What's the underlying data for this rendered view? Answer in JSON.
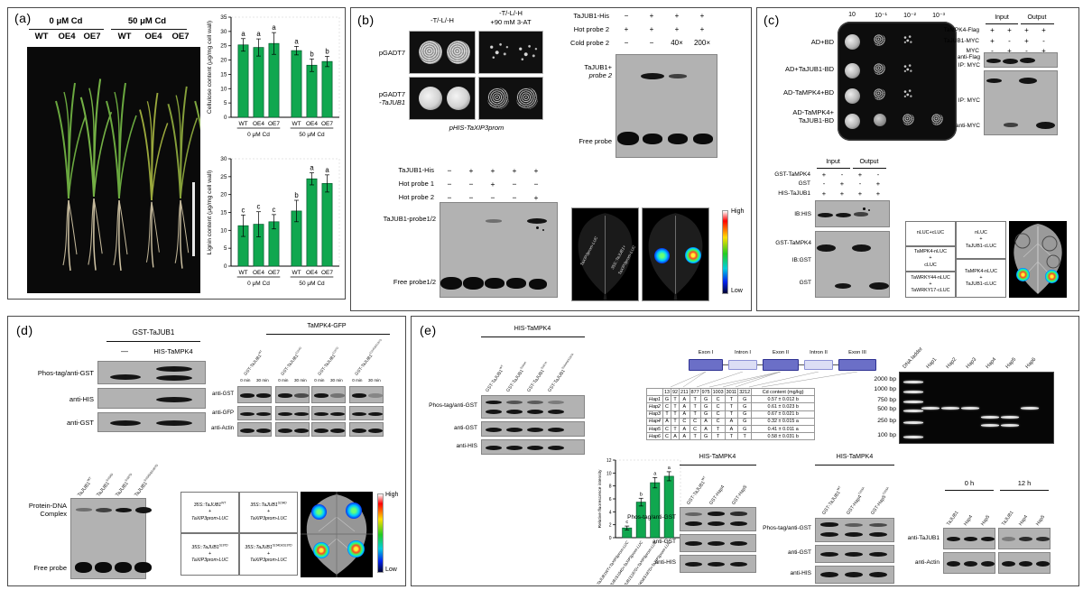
{
  "panel_a": {
    "label": "(a)",
    "treatments": [
      "0 μM Cd",
      "50 μM Cd"
    ],
    "genotypes": [
      "WT",
      "OE4",
      "OE7",
      "WT",
      "OE4",
      "OE7"
    ]
  },
  "panel_b": {
    "label": "(b)",
    "y1h": {
      "col1": "-T/-L/-H",
      "col2a": "-T/-L/-H",
      "col2b": "+90 mM 3-AT",
      "row1": "pGADT7",
      "row2a": "pGADT7",
      "row2b": "-TaJUB1",
      "bottom": "pHIS-TaXIP3prom"
    },
    "emsa1": {
      "rows": [
        {
          "label": "TaJUB1-His",
          "values": [
            "−",
            "+",
            "+",
            "+"
          ]
        },
        {
          "label": "Hot probe 2",
          "values": [
            "+",
            "+",
            "+",
            "+"
          ]
        },
        {
          "label": "Cold probe 2",
          "values": [
            "−",
            "−",
            "40×",
            "200×"
          ]
        }
      ],
      "shift1": "TaJUB1+",
      "shift2": "probe 2",
      "free": "Free probe"
    },
    "emsa2": {
      "rows": [
        {
          "label": "TaJUB1-His",
          "values": [
            "−",
            "+",
            "+",
            "+",
            "+"
          ]
        },
        {
          "label": "Hot probe 1",
          "values": [
            "−",
            "−",
            "+",
            "−",
            "−"
          ]
        },
        {
          "label": "Hot probe 2",
          "values": [
            "−",
            "−",
            "−",
            "−",
            "+"
          ]
        }
      ],
      "shift": "TaJUB1-probe1/2",
      "free": "Free probe1/2"
    },
    "luc": {
      "leaf1_label1": "TaXIP3prom-LUC",
      "leaf1_label2": "35S::TaJUB1+",
      "leaf1_label3": "TaXIP3prom-LUC",
      "high": "High",
      "low": "Low"
    }
  },
  "panel_c": {
    "label": "(c)",
    "y2h": {
      "dilutions": [
        "10",
        "10⁻¹",
        "10⁻²",
        "10⁻³"
      ],
      "rows": [
        [
          "AD+BD"
        ],
        [
          "AD+TaJUB1-BD"
        ],
        [
          "AD-TaMPK4+BD"
        ],
        [
          "AD-TaMPK4+",
          "TaJUB1-BD"
        ]
      ],
      "spots": [
        [
          1,
          0.3,
          0.12,
          0
        ],
        [
          1,
          0.3,
          0.1,
          0
        ],
        [
          1,
          0.28,
          0.1,
          0
        ],
        [
          1,
          0.8,
          0.4,
          0.25
        ]
      ]
    },
    "coip": {
      "input": "Input",
      "output": "Output",
      "rows": [
        {
          "label": "TaMPK4-Flag",
          "values": [
            "+",
            "+",
            "+",
            "+"
          ]
        },
        {
          "label": "TaJUB1-MYC",
          "values": [
            "+",
            "-",
            "+",
            "-"
          ]
        },
        {
          "label": "MYC",
          "values": [
            "-",
            "+",
            "-",
            "+"
          ]
        }
      ],
      "blot_labels": [
        "anti-Flag",
        "IP: MYC",
        "IP: MYC",
        "anti-MYC"
      ]
    },
    "pulldown": {
      "input": "Input",
      "output": "Output",
      "rows": [
        {
          "label": "GST-TaMPK4",
          "values": [
            "+",
            "-",
            "+",
            "-"
          ]
        },
        {
          "label": "GST",
          "values": [
            "-",
            "+",
            "-",
            "+"
          ]
        },
        {
          "label": "HIS-TaJUB1",
          "values": [
            "+",
            "+",
            "+",
            "+"
          ]
        }
      ],
      "blot_labels": [
        "IB:HIS",
        "GST-TaMPK4",
        "IB:GST",
        "GST"
      ]
    },
    "split_luc": {
      "cells": [
        [
          "nLUC+cLUC"
        ],
        [
          "TaMPK4-nLUC",
          "+",
          "cLUC"
        ],
        [
          "TaWRKY44-nLUC",
          "+",
          "TaWRKY17-cLUC"
        ],
        [
          "nLUC",
          "+",
          "TaJUB1-cLUC"
        ],
        [
          "TaMPK4-nLUC",
          "+",
          "TaJUB1-cLUC"
        ]
      ]
    }
  },
  "panel_d": {
    "label": "(d)",
    "assay1": {
      "header": "GST-TaJUB1",
      "lane1": "—",
      "lane2": "HIS-TaMPK4",
      "rows": [
        "Phos-tag/anti-GST",
        "anti-HIS",
        "anti-GST"
      ]
    },
    "kinetics": {
      "header": "TaMPK4-GFP",
      "lanes": [
        "GST-TaJUB1^{WT}",
        "GST-TaJUB1^{S164D}",
        "GST-TaJUB1^{S187D}",
        "GST-TaJUB1^{S164D&S187D}"
      ],
      "t0": "0 min",
      "t30": "30 min",
      "rows": [
        "anti-GST",
        "anti-GFP",
        "anti-Actin"
      ]
    },
    "emsa": {
      "lanes": [
        "TaJUB1^{WT}",
        "TaJUB1^{S164D}",
        "TaJUB1^{S187D}",
        "TaJUB1^{S164D&S187D}"
      ],
      "complex1": "Protein-DNA",
      "complex2": "Complex",
      "free": "Free probe"
    },
    "luc": {
      "cells": [
        [
          "35S::TaJUB1^{WT}",
          "+",
          "TaXIP3prom-LUC"
        ],
        [
          "35S::TaJUB1^{S164D}",
          "+",
          "TaXIP3prom-LUC"
        ],
        [
          "35S::TaJUB1^{S187D}",
          "+",
          "TaXIP3prom-LUC"
        ],
        [
          "35S::TaJUB1^{S164D&S187D}",
          "+",
          "TaXIP3prom-LUC"
        ]
      ],
      "high": "High",
      "low": "Low"
    }
  },
  "panel_e": {
    "label": "(e)",
    "assay1": {
      "header": "HIS-TaMPK4",
      "lanes": [
        "GST-TaJUB1^{WT}",
        "GST-TaJUB1^{S164A}",
        "GST-TaJUB1^{S187A}",
        "GST-TaJUB1^{S164A&S187A}"
      ],
      "rows": [
        "Phos-tag/anti-GST",
        "anti-GST",
        "anti-HIS"
      ]
    },
    "gene": {
      "exon1": "Exon I",
      "intron1": "Intron I",
      "exon2": "Exon II",
      "intron2": "Intron II",
      "exon3": "Exon III"
    },
    "haplotypes": {
      "header": [
        "",
        "13",
        "92",
        "211",
        "877",
        "975",
        "1003",
        "3011",
        "3212",
        "Cd content (mg/kg)"
      ],
      "rows": [
        {
          "name": "Hap1",
          "alleles": [
            "G",
            "T",
            "A",
            "T",
            "G",
            "C",
            "T",
            "G"
          ],
          "cd": "0.57 ± 0.012 b"
        },
        {
          "name": "Hap2",
          "alleles": [
            "C",
            "T",
            "A",
            "T",
            "G",
            "C",
            "T",
            "G"
          ],
          "cd": "0.61 ± 0.023 b"
        },
        {
          "name": "Hap3",
          "alleles": [
            "T",
            "T",
            "A",
            "T",
            "G",
            "C",
            "T",
            "G"
          ],
          "cd": "0.67 ± 0.021 b"
        },
        {
          "name": "Hap4",
          "alleles": [
            "A",
            "T",
            "C",
            "C",
            "A",
            "C",
            "A",
            "G"
          ],
          "cd": "0.32 ± 0.015 a"
        },
        {
          "name": "Hap5",
          "alleles": [
            "C",
            "T",
            "A",
            "C",
            "A",
            "T",
            "A",
            "G"
          ],
          "cd": "0.41 ± 0.011 a"
        },
        {
          "name": "Hap6",
          "alleles": [
            "C",
            "A",
            "A",
            "T",
            "G",
            "T",
            "T",
            "T"
          ],
          "cd": "0.58 ± 0.031 b"
        }
      ]
    },
    "gel": {
      "lanes": [
        "DNA ladder",
        "Hap1",
        "Hap2",
        "Hap3",
        "Hap4",
        "Hap5",
        "Hap6"
      ],
      "sizes": [
        "2000 bp",
        "1000 bp",
        "750 bp",
        "500 bp",
        "250 bp",
        "100 bp"
      ]
    },
    "assay2": {
      "header": "HIS-TaMPK4",
      "lanes": [
        "GST-TaJUB1^{WT}",
        "GST-Hap4",
        "GST-Hap5"
      ],
      "rows": [
        "Phos-tag/anti-GST",
        "anti-GST",
        "anti-HIS"
      ]
    },
    "assay3": {
      "header": "HIS-TaMPK4",
      "lanes": [
        "GST-TaJUB1^{WT}",
        "GST-Hap4^{T293A}",
        "GST-Hap5^{T293A}"
      ],
      "rows": [
        "Phos-tag/anti-GST",
        "anti-GST",
        "anti-HIS"
      ]
    },
    "timecourse": {
      "t0": "0 h",
      "t12": "12 h",
      "lanes": [
        "TaJUB1",
        "Hap4",
        "Hap5"
      ],
      "rows": [
        "anti-TaJUB1",
        "anti-Actin"
      ]
    }
  },
  "chart_data": [
    {
      "type": "bar",
      "ylabel": "Cellulose content (μg/mg cell wall)",
      "ylim": [
        0,
        35
      ],
      "ystep": 5,
      "categories": [
        "WT",
        "OE4",
        "OE7",
        "WT",
        "OE4",
        "OE7"
      ],
      "values": [
        25.3,
        24.4,
        25.8,
        23.3,
        18.2,
        19.5
      ],
      "errors": [
        2.2,
        3.0,
        3.8,
        1.5,
        2.2,
        1.8
      ],
      "letters": [
        "a",
        "a",
        "a",
        "a",
        "b",
        "b"
      ],
      "groups": [
        {
          "label": "0 μM Cd",
          "from": 0,
          "to": 2
        },
        {
          "label": "50 μM Cd",
          "from": 3,
          "to": 5
        }
      ],
      "bar_color": "#10a74f"
    },
    {
      "type": "bar",
      "ylabel": "Lignin content (μg/mg cell wall)",
      "ylim": [
        0,
        30
      ],
      "ystep": 5,
      "categories": [
        "WT",
        "OE4",
        "OE7",
        "WT",
        "OE4",
        "OE7"
      ],
      "values": [
        11.3,
        11.7,
        12.4,
        15.4,
        24.4,
        23.1
      ],
      "errors": [
        3.0,
        3.5,
        2.0,
        3.0,
        1.7,
        2.4
      ],
      "letters": [
        "c",
        "c",
        "c",
        "b",
        "a",
        "a"
      ],
      "groups": [
        {
          "label": "0 μM Cd",
          "from": 0,
          "to": 2
        },
        {
          "label": "50 μM Cd",
          "from": 3,
          "to": 5
        }
      ],
      "bar_color": "#10a74f"
    },
    {
      "type": "bar",
      "ylabel": "Relative fluorescence intensity",
      "ylim": [
        0,
        12
      ],
      "ystep": 2,
      "categories": [
        "35S::TaJUB1WT+TaXIP3prom-LUC",
        "35S::TaJUB1S164D+TaXIP3prom-LUC",
        "35S::TaJUB1S187D+TaXIP3prom-LUC",
        "35S::TaJUB1S164D&S187D+TaXIP3prom-LUC"
      ],
      "values": [
        1.5,
        5.5,
        8.5,
        9.5
      ],
      "errors": [
        0.3,
        0.6,
        0.8,
        0.7
      ],
      "letters": [
        "c",
        "b",
        "a",
        "a"
      ],
      "rotated": true,
      "bar_color": "#10a74f"
    }
  ]
}
